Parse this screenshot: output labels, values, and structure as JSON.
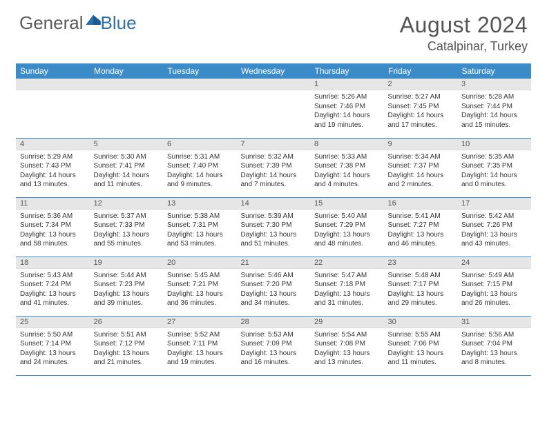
{
  "brand": {
    "part1": "General",
    "part2": "Blue"
  },
  "title": "August 2024",
  "location": "Catalpinar, Turkey",
  "colors": {
    "header_bg": "#3b8bc8",
    "header_text": "#ffffff",
    "daybar_bg": "#e6e6e6",
    "text": "#333333",
    "rule": "#3b8bc8",
    "logo_gray": "#5a5a5a",
    "logo_blue": "#2f6fa8"
  },
  "daysOfWeek": [
    "Sunday",
    "Monday",
    "Tuesday",
    "Wednesday",
    "Thursday",
    "Friday",
    "Saturday"
  ],
  "startOffset": 4,
  "days": [
    {
      "n": 1,
      "sunrise": "5:26 AM",
      "sunset": "7:46 PM",
      "daylight": "14 hours and 19 minutes."
    },
    {
      "n": 2,
      "sunrise": "5:27 AM",
      "sunset": "7:45 PM",
      "daylight": "14 hours and 17 minutes."
    },
    {
      "n": 3,
      "sunrise": "5:28 AM",
      "sunset": "7:44 PM",
      "daylight": "14 hours and 15 minutes."
    },
    {
      "n": 4,
      "sunrise": "5:29 AM",
      "sunset": "7:43 PM",
      "daylight": "14 hours and 13 minutes."
    },
    {
      "n": 5,
      "sunrise": "5:30 AM",
      "sunset": "7:41 PM",
      "daylight": "14 hours and 11 minutes."
    },
    {
      "n": 6,
      "sunrise": "5:31 AM",
      "sunset": "7:40 PM",
      "daylight": "14 hours and 9 minutes."
    },
    {
      "n": 7,
      "sunrise": "5:32 AM",
      "sunset": "7:39 PM",
      "daylight": "14 hours and 7 minutes."
    },
    {
      "n": 8,
      "sunrise": "5:33 AM",
      "sunset": "7:38 PM",
      "daylight": "14 hours and 4 minutes."
    },
    {
      "n": 9,
      "sunrise": "5:34 AM",
      "sunset": "7:37 PM",
      "daylight": "14 hours and 2 minutes."
    },
    {
      "n": 10,
      "sunrise": "5:35 AM",
      "sunset": "7:35 PM",
      "daylight": "14 hours and 0 minutes."
    },
    {
      "n": 11,
      "sunrise": "5:36 AM",
      "sunset": "7:34 PM",
      "daylight": "13 hours and 58 minutes."
    },
    {
      "n": 12,
      "sunrise": "5:37 AM",
      "sunset": "7:33 PM",
      "daylight": "13 hours and 55 minutes."
    },
    {
      "n": 13,
      "sunrise": "5:38 AM",
      "sunset": "7:31 PM",
      "daylight": "13 hours and 53 minutes."
    },
    {
      "n": 14,
      "sunrise": "5:39 AM",
      "sunset": "7:30 PM",
      "daylight": "13 hours and 51 minutes."
    },
    {
      "n": 15,
      "sunrise": "5:40 AM",
      "sunset": "7:29 PM",
      "daylight": "13 hours and 48 minutes."
    },
    {
      "n": 16,
      "sunrise": "5:41 AM",
      "sunset": "7:27 PM",
      "daylight": "13 hours and 46 minutes."
    },
    {
      "n": 17,
      "sunrise": "5:42 AM",
      "sunset": "7:26 PM",
      "daylight": "13 hours and 43 minutes."
    },
    {
      "n": 18,
      "sunrise": "5:43 AM",
      "sunset": "7:24 PM",
      "daylight": "13 hours and 41 minutes."
    },
    {
      "n": 19,
      "sunrise": "5:44 AM",
      "sunset": "7:23 PM",
      "daylight": "13 hours and 39 minutes."
    },
    {
      "n": 20,
      "sunrise": "5:45 AM",
      "sunset": "7:21 PM",
      "daylight": "13 hours and 36 minutes."
    },
    {
      "n": 21,
      "sunrise": "5:46 AM",
      "sunset": "7:20 PM",
      "daylight": "13 hours and 34 minutes."
    },
    {
      "n": 22,
      "sunrise": "5:47 AM",
      "sunset": "7:18 PM",
      "daylight": "13 hours and 31 minutes."
    },
    {
      "n": 23,
      "sunrise": "5:48 AM",
      "sunset": "7:17 PM",
      "daylight": "13 hours and 29 minutes."
    },
    {
      "n": 24,
      "sunrise": "5:49 AM",
      "sunset": "7:15 PM",
      "daylight": "13 hours and 26 minutes."
    },
    {
      "n": 25,
      "sunrise": "5:50 AM",
      "sunset": "7:14 PM",
      "daylight": "13 hours and 24 minutes."
    },
    {
      "n": 26,
      "sunrise": "5:51 AM",
      "sunset": "7:12 PM",
      "daylight": "13 hours and 21 minutes."
    },
    {
      "n": 27,
      "sunrise": "5:52 AM",
      "sunset": "7:11 PM",
      "daylight": "13 hours and 19 minutes."
    },
    {
      "n": 28,
      "sunrise": "5:53 AM",
      "sunset": "7:09 PM",
      "daylight": "13 hours and 16 minutes."
    },
    {
      "n": 29,
      "sunrise": "5:54 AM",
      "sunset": "7:08 PM",
      "daylight": "13 hours and 13 minutes."
    },
    {
      "n": 30,
      "sunrise": "5:55 AM",
      "sunset": "7:06 PM",
      "daylight": "13 hours and 11 minutes."
    },
    {
      "n": 31,
      "sunrise": "5:56 AM",
      "sunset": "7:04 PM",
      "daylight": "13 hours and 8 minutes."
    }
  ],
  "labels": {
    "sunrise": "Sunrise:",
    "sunset": "Sunset:",
    "daylight": "Daylight:"
  }
}
